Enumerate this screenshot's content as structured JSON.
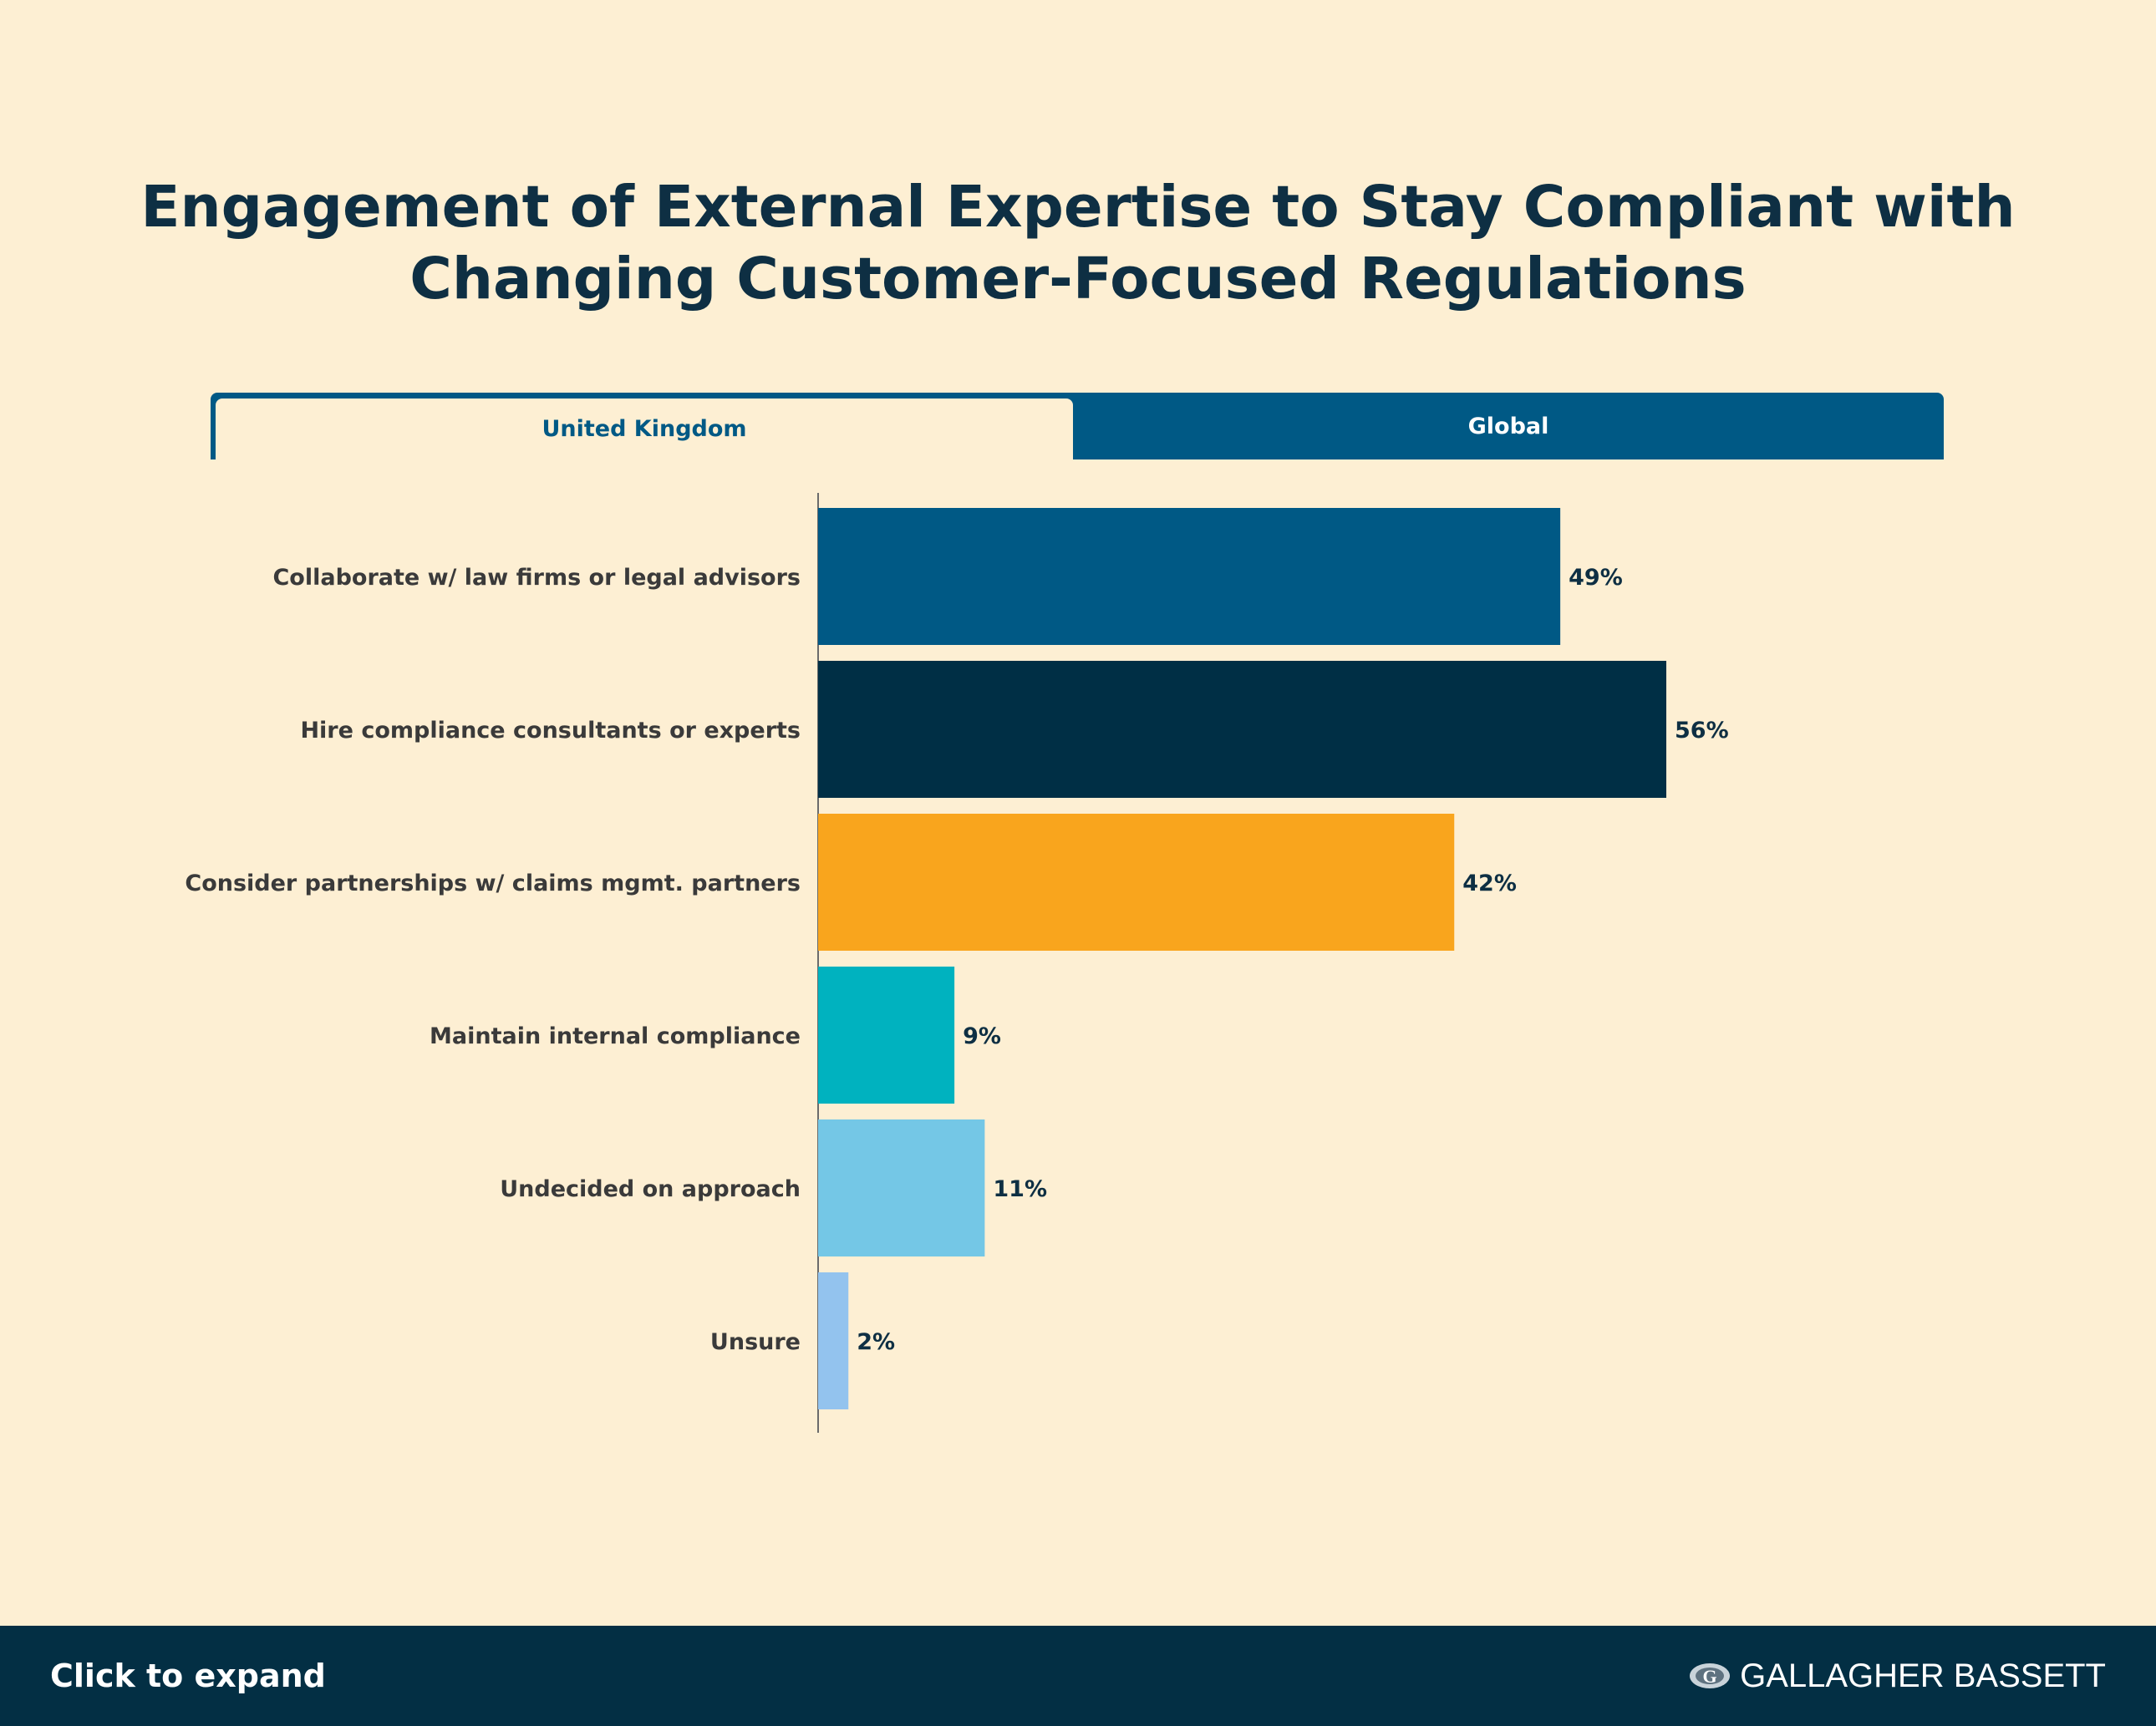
{
  "title": "Engagement of External Expertise to Stay Compliant with Changing Customer-Focused Regulations",
  "title_lines": [
    "Engagement of External Expertise to Stay Compliant with",
    "Changing Customer-Focused Regulations"
  ],
  "tabs": [
    {
      "label": "United Kingdom",
      "active": true
    },
    {
      "label": "Global",
      "active": false
    }
  ],
  "colors": {
    "background": "#fdefd3",
    "tab_bar": "#005985",
    "footer": "#032f44"
  },
  "chart_data": {
    "type": "bar",
    "orientation": "horizontal",
    "categories": [
      "Collaborate w/ law firms or legal advisors",
      "Hire compliance consultants or experts",
      "Consider partnerships w/ claims mgmt. partners",
      "Maintain internal compliance",
      "Undecided on approach",
      "Unsure"
    ],
    "values": [
      49,
      56,
      42,
      9,
      11,
      2
    ],
    "value_labels": [
      "49%",
      "56%",
      "42%",
      "9%",
      "11%",
      "2%"
    ],
    "colors": [
      "#005985",
      "#002f45",
      "#f9a51d",
      "#00b2bf",
      "#74c7e6",
      "#93c3ee"
    ],
    "unit": "%",
    "xlim": [
      0,
      100
    ],
    "grid": false,
    "legend": "none"
  },
  "footer": {
    "expand_label": "Click to expand",
    "logo_text": "GALLAGHER BASSETT",
    "logo_icon": "gallagher-bassett-logo-icon"
  }
}
